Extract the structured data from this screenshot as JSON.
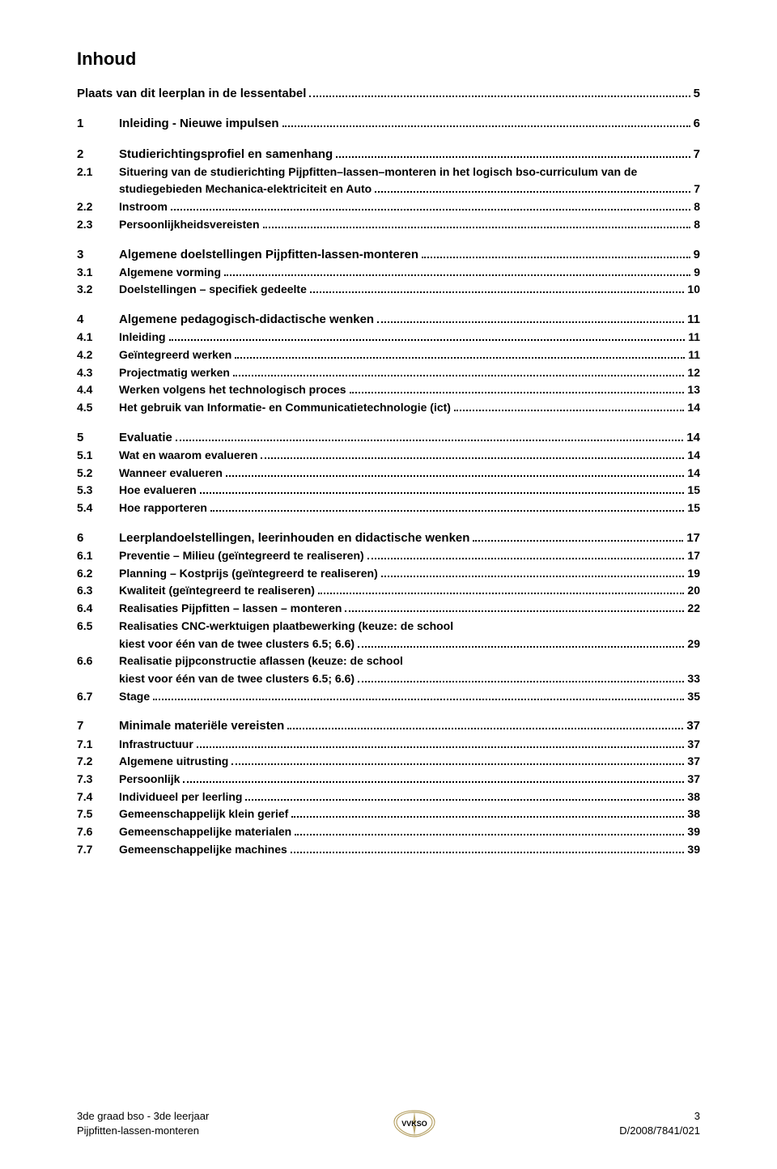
{
  "title": "Inhoud",
  "toc": [
    {
      "type": "group",
      "items": [
        {
          "num": "",
          "label": "Plaats van dit leerplan in de lessentabel",
          "page": "5",
          "level": "section",
          "nonum": true
        }
      ]
    },
    {
      "type": "group",
      "items": [
        {
          "num": "1",
          "label": "Inleiding - Nieuwe impulsen",
          "page": "6",
          "level": "section"
        }
      ]
    },
    {
      "type": "group",
      "items": [
        {
          "num": "2",
          "label": "Studierichtingsprofiel en samenhang",
          "page": "7",
          "level": "section"
        },
        {
          "num": "2.1",
          "label": "Situering van de studierichting Pijpfitten–lassen–monteren in het logisch bso-curriculum van de studiegebieden Mechanica-elektriciteit en Auto",
          "page": "7",
          "level": "sub",
          "wrap": true
        },
        {
          "num": "2.2",
          "label": "Instroom",
          "page": "8",
          "level": "sub"
        },
        {
          "num": "2.3",
          "label": "Persoonlijkheidsvereisten",
          "page": "8",
          "level": "sub"
        }
      ]
    },
    {
      "type": "group",
      "items": [
        {
          "num": "3",
          "label": "Algemene doelstellingen Pijpfitten-lassen-monteren",
          "page": "9",
          "level": "section"
        },
        {
          "num": "3.1",
          "label": "Algemene vorming",
          "page": "9",
          "level": "sub"
        },
        {
          "num": "3.2",
          "label": "Doelstellingen – specifiek gedeelte",
          "page": "10",
          "level": "sub"
        }
      ]
    },
    {
      "type": "group",
      "items": [
        {
          "num": "4",
          "label": "Algemene pedagogisch-didactische wenken",
          "page": "11",
          "level": "section"
        },
        {
          "num": "4.1",
          "label": "Inleiding",
          "page": "11",
          "level": "sub"
        },
        {
          "num": "4.2",
          "label": "Geïntegreerd werken",
          "page": "11",
          "level": "sub"
        },
        {
          "num": "4.3",
          "label": "Projectmatig werken",
          "page": "12",
          "level": "sub"
        },
        {
          "num": "4.4",
          "label": "Werken volgens het technologisch proces",
          "page": "13",
          "level": "sub"
        },
        {
          "num": "4.5",
          "label": "Het gebruik van Informatie- en Communicatietechnologie (ict)",
          "page": "14",
          "level": "sub"
        }
      ]
    },
    {
      "type": "group",
      "items": [
        {
          "num": "5",
          "label": "Evaluatie",
          "page": "14",
          "level": "section"
        },
        {
          "num": "5.1",
          "label": "Wat en waarom evalueren",
          "page": "14",
          "level": "sub"
        },
        {
          "num": "5.2",
          "label": "Wanneer evalueren",
          "page": "14",
          "level": "sub"
        },
        {
          "num": "5.3",
          "label": "Hoe evalueren",
          "page": "15",
          "level": "sub"
        },
        {
          "num": "5.4",
          "label": "Hoe rapporteren",
          "page": "15",
          "level": "sub"
        }
      ]
    },
    {
      "type": "group",
      "items": [
        {
          "num": "6",
          "label": "Leerplandoelstellingen, leerinhouden en didactische wenken",
          "page": "17",
          "level": "section"
        },
        {
          "num": "6.1",
          "label": "Preventie – Milieu (geïntegreerd te realiseren)",
          "page": "17",
          "level": "sub"
        },
        {
          "num": "6.2",
          "label": "Planning – Kostprijs (geïntegreerd te realiseren)",
          "page": "19",
          "level": "sub"
        },
        {
          "num": "6.3",
          "label": "Kwaliteit (geïntegreerd te realiseren)",
          "page": "20",
          "level": "sub"
        },
        {
          "num": "6.4",
          "label": "Realisaties  Pijpfitten – lassen – monteren",
          "page": "22",
          "level": "sub"
        },
        {
          "num": "6.5",
          "label": "Realisaties CNC-werktuigen plaatbewerking (keuze: de school kiest voor één van de twee clusters 6.5; 6.6)",
          "page": "29",
          "level": "sub",
          "wrap": true
        },
        {
          "num": "6.6",
          "label": "Realisatie pijpconstructie aflassen (keuze: de school kiest voor één van de twee clusters 6.5; 6.6)",
          "page": "33",
          "level": "sub",
          "wrap": true
        },
        {
          "num": "6.7",
          "label": "Stage",
          "page": "35",
          "level": "sub"
        }
      ]
    },
    {
      "type": "group",
      "items": [
        {
          "num": "7",
          "label": "Minimale materiële vereisten",
          "page": "37",
          "level": "section"
        },
        {
          "num": "7.1",
          "label": "Infrastructuur",
          "page": "37",
          "level": "sub"
        },
        {
          "num": "7.2",
          "label": "Algemene uitrusting",
          "page": "37",
          "level": "sub"
        },
        {
          "num": "7.3",
          "label": "Persoonlijk",
          "page": "37",
          "level": "sub"
        },
        {
          "num": "7.4",
          "label": "Individueel per leerling",
          "page": "38",
          "level": "sub"
        },
        {
          "num": "7.5",
          "label": "Gemeenschappelijk klein gerief",
          "page": "38",
          "level": "sub"
        },
        {
          "num": "7.6",
          "label": "Gemeenschappelijke materialen",
          "page": "39",
          "level": "sub"
        },
        {
          "num": "7.7",
          "label": "Gemeenschappelijke machines",
          "page": "39",
          "level": "sub"
        }
      ]
    }
  ],
  "footer": {
    "left_line1": "3de graad bso - 3de leerjaar",
    "left_line2": "Pijpfitten-lassen-monteren",
    "right_line1": "3",
    "right_line2": "D/2008/7841/021",
    "logo_text": "VVKSO"
  },
  "colors": {
    "text": "#000000",
    "background": "#ffffff",
    "logo_stroke": "#b9a56b"
  },
  "typography": {
    "title_fontsize_pt": 16,
    "section_fontsize_pt": 11,
    "sub_fontsize_pt": 10.5,
    "footer_fontsize_pt": 9.5,
    "font_family": "Arial"
  }
}
